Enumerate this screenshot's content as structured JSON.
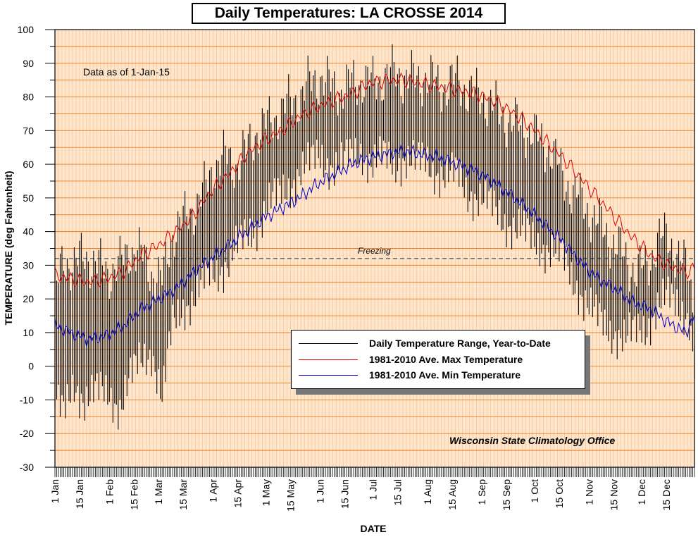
{
  "chart_data": {
    "type": "line",
    "title": "Daily Temperatures: LA CROSSE 2014",
    "xlabel": "DATE",
    "ylabel": "TEMPERATURE (deg Fahrenheit)",
    "ylim": [
      -30,
      100
    ],
    "yticks": [
      -30,
      -20,
      -10,
      0,
      10,
      20,
      30,
      40,
      50,
      60,
      70,
      80,
      90,
      100
    ],
    "xtick_labels": [
      "1 Jan",
      "15 Jan",
      "1 Feb",
      "15 Feb",
      "1 Mar",
      "15 Mar",
      "1 Apr",
      "15 Apr",
      "1 May",
      "15 May",
      "1 Jun",
      "15 Jun",
      "1 Jul",
      "15 Jul",
      "1 Aug",
      "15 Aug",
      "1 Sep",
      "15 Sep",
      "1 Oct",
      "15 Oct",
      "1 Nov",
      "15 Nov",
      "1 Dec",
      "15 Dec"
    ],
    "xtick_days": [
      1,
      15,
      32,
      46,
      60,
      74,
      91,
      105,
      121,
      135,
      152,
      166,
      182,
      196,
      213,
      227,
      244,
      258,
      274,
      288,
      305,
      319,
      335,
      349
    ],
    "grid": true,
    "legend_position": "center-right",
    "annotations": {
      "as_of": "Data as of 1-Jan-15",
      "credit": "Wisconsin State Climatology Office",
      "freezing_label": "Freezing",
      "freezing_value": 32
    },
    "colors": {
      "background": "#fde6cc",
      "grid_major": "#f07c1c",
      "grid_minor": "#f7b98a",
      "range": "#000000",
      "avg_max": "#e00000",
      "avg_min": "#0000cc"
    },
    "series": [
      {
        "name": "Daily Temperature Range, Year-to-Date",
        "kind": "range",
        "anchor_days": [
          1,
          6,
          12,
          18,
          25,
          32,
          38,
          44,
          50,
          56,
          62,
          68,
          74,
          80,
          86,
          92,
          98,
          104,
          110,
          116,
          122,
          128,
          134,
          140,
          146,
          152,
          158,
          164,
          170,
          176,
          182,
          188,
          194,
          200,
          206,
          212,
          218,
          224,
          230,
          236,
          242,
          248,
          254,
          260,
          266,
          272,
          278,
          284,
          290,
          296,
          302,
          308,
          314,
          320,
          326,
          332,
          338,
          344,
          350,
          356,
          362,
          365
        ],
        "anchor_max": [
          21,
          32,
          30,
          33,
          30,
          28,
          30,
          35,
          33,
          28,
          25,
          40,
          43,
          47,
          52,
          60,
          62,
          60,
          64,
          70,
          72,
          75,
          78,
          80,
          84,
          86,
          83,
          82,
          84,
          85,
          84,
          86,
          87,
          86,
          85,
          86,
          84,
          83,
          85,
          82,
          80,
          79,
          75,
          73,
          71,
          70,
          66,
          64,
          56,
          52,
          48,
          44,
          40,
          36,
          32,
          28,
          30,
          37,
          39,
          32,
          28,
          15
        ],
        "anchor_min": [
          -10,
          -15,
          -5,
          -10,
          -8,
          -8,
          -12,
          -4,
          2,
          5,
          -10,
          12,
          18,
          20,
          25,
          28,
          30,
          35,
          38,
          42,
          48,
          50,
          53,
          58,
          60,
          62,
          60,
          60,
          62,
          64,
          60,
          62,
          60,
          62,
          60,
          61,
          58,
          56,
          57,
          52,
          50,
          48,
          45,
          42,
          40,
          38,
          36,
          34,
          32,
          26,
          20,
          15,
          12,
          10,
          8,
          10,
          12,
          18,
          20,
          18,
          15,
          0
        ]
      },
      {
        "name": "1981-2010 Ave. Max Temperature",
        "kind": "line",
        "anchor_days": [
          1,
          10,
          20,
          30,
          40,
          50,
          60,
          70,
          80,
          90,
          100,
          110,
          120,
          130,
          140,
          150,
          160,
          170,
          180,
          190,
          200,
          210,
          220,
          230,
          240,
          250,
          260,
          270,
          280,
          290,
          300,
          310,
          320,
          330,
          340,
          350,
          360,
          365
        ],
        "values": [
          27,
          26,
          25,
          26,
          28,
          33,
          36,
          40,
          45,
          52,
          57,
          63,
          67,
          70,
          74,
          77,
          79,
          81,
          84,
          85,
          85,
          84,
          83,
          82,
          81,
          79,
          76,
          72,
          67,
          62,
          56,
          50,
          44,
          38,
          33,
          30,
          28,
          29
        ]
      },
      {
        "name": "1981-2010 Ave. Min Temperature",
        "kind": "line",
        "anchor_days": [
          1,
          10,
          20,
          30,
          40,
          50,
          60,
          70,
          80,
          90,
          100,
          110,
          120,
          130,
          140,
          150,
          160,
          170,
          180,
          190,
          200,
          210,
          220,
          230,
          240,
          250,
          260,
          270,
          280,
          290,
          300,
          310,
          320,
          330,
          340,
          350,
          360,
          365
        ],
        "values": [
          12,
          10,
          8,
          9,
          12,
          17,
          20,
          23,
          28,
          32,
          36,
          40,
          44,
          47,
          50,
          54,
          57,
          60,
          62,
          63,
          64,
          63,
          62,
          60,
          58,
          55,
          51,
          47,
          42,
          37,
          31,
          26,
          23,
          19,
          17,
          13,
          10,
          15
        ]
      }
    ]
  }
}
